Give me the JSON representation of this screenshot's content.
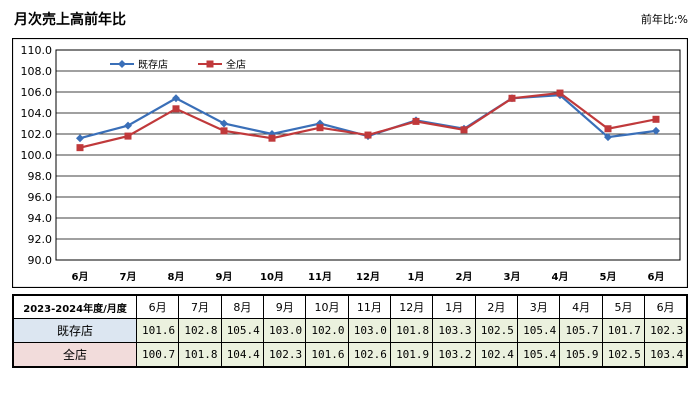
{
  "header": {
    "title": "月次売上高前年比",
    "unit": "前年比:%"
  },
  "chart_data": {
    "type": "line",
    "categories": [
      "6月",
      "7月",
      "8月",
      "9月",
      "10月",
      "11月",
      "12月",
      "1月",
      "2月",
      "3月",
      "4月",
      "5月",
      "6月"
    ],
    "ylim": [
      90.0,
      110.0
    ],
    "yticks": [
      "110.0",
      "108.0",
      "106.0",
      "104.0",
      "102.0",
      "100.0",
      "98.0",
      "96.0",
      "94.0",
      "92.0",
      "90.0"
    ],
    "grid": true,
    "legend_position": "top-left",
    "series": [
      {
        "name": "既存店",
        "color": "#3a6fb8",
        "marker": "diamond",
        "values": [
          101.6,
          102.8,
          105.4,
          103.0,
          102.0,
          103.0,
          101.8,
          103.3,
          102.5,
          105.4,
          105.7,
          101.7,
          102.3
        ]
      },
      {
        "name": "全店",
        "color": "#c0393b",
        "marker": "square",
        "values": [
          100.7,
          101.8,
          104.4,
          102.3,
          101.6,
          102.6,
          101.9,
          103.2,
          102.4,
          105.4,
          105.9,
          102.5,
          103.4
        ]
      }
    ]
  },
  "table": {
    "corner": "2023-2024年度/月度",
    "months": [
      "6月",
      "7月",
      "8月",
      "9月",
      "10月",
      "11月",
      "12月",
      "1月",
      "2月",
      "3月",
      "4月",
      "5月",
      "6月"
    ],
    "rows": [
      {
        "label": "既存店",
        "values": [
          "101.6",
          "102.8",
          "105.4",
          "103.0",
          "102.0",
          "103.0",
          "101.8",
          "103.3",
          "102.5",
          "105.4",
          "105.7",
          "101.7",
          "102.3"
        ]
      },
      {
        "label": "全店",
        "values": [
          "100.7",
          "101.8",
          "104.4",
          "102.3",
          "101.6",
          "102.6",
          "101.9",
          "103.2",
          "102.4",
          "105.4",
          "105.9",
          "102.5",
          "103.4"
        ]
      }
    ]
  }
}
